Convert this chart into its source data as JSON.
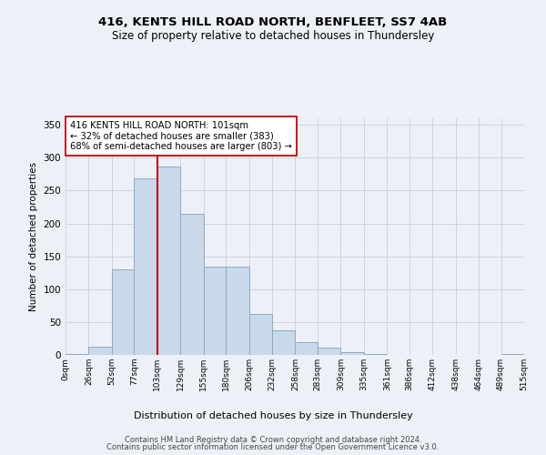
{
  "title1": "416, KENTS HILL ROAD NORTH, BENFLEET, SS7 4AB",
  "title2": "Size of property relative to detached houses in Thundersley",
  "xlabel": "Distribution of detached houses by size in Thundersley",
  "ylabel": "Number of detached properties",
  "bar_values": [
    2,
    13,
    130,
    268,
    287,
    215,
    135,
    135,
    63,
    37,
    20,
    11,
    4,
    1,
    0,
    0,
    0,
    0,
    0,
    1
  ],
  "bin_edges": [
    0,
    26,
    52,
    77,
    103,
    129,
    155,
    180,
    206,
    232,
    258,
    283,
    309,
    335,
    361,
    386,
    412,
    438,
    464,
    489,
    515
  ],
  "tick_labels": [
    "0sqm",
    "26sqm",
    "52sqm",
    "77sqm",
    "103sqm",
    "129sqm",
    "155sqm",
    "180sqm",
    "206sqm",
    "232sqm",
    "258sqm",
    "283sqm",
    "309sqm",
    "335sqm",
    "361sqm",
    "386sqm",
    "412sqm",
    "438sqm",
    "464sqm",
    "489sqm",
    "515sqm"
  ],
  "bar_color": "#c9d9ea",
  "bar_edge_color": "#8aaac8",
  "vline_x": 103,
  "vline_color": "#cc0000",
  "annotation_text": "416 KENTS HILL ROAD NORTH: 101sqm\n← 32% of detached houses are smaller (383)\n68% of semi-detached houses are larger (803) →",
  "annotation_box_color": "#ffffff",
  "annotation_box_edge": "#cc0000",
  "ylim": [
    0,
    360
  ],
  "yticks": [
    0,
    50,
    100,
    150,
    200,
    250,
    300,
    350
  ],
  "grid_color": "#c8d4e0",
  "background_color": "#edf1f7",
  "footer1": "Contains HM Land Registry data © Crown copyright and database right 2024.",
  "footer2": "Contains public sector information licensed under the Open Government Licence v3.0."
}
